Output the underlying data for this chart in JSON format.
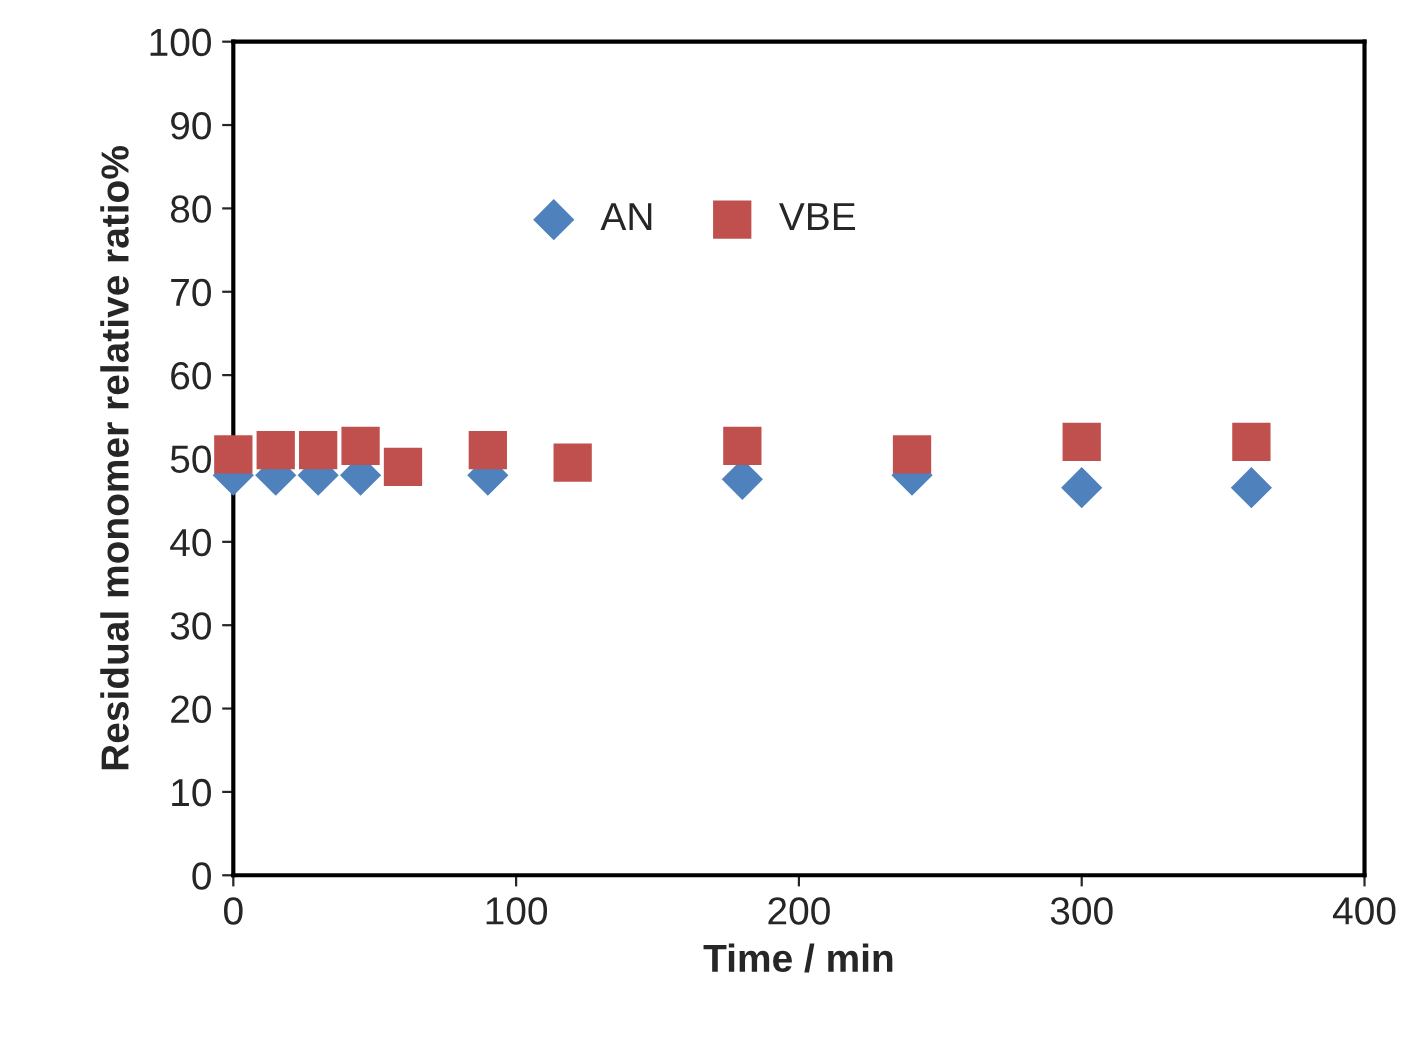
{
  "chart_data": {
    "type": "scatter",
    "xlabel": "Time / min",
    "ylabel": "Residual monomer relative ratio%",
    "x": [
      0,
      15,
      30,
      45,
      60,
      90,
      120,
      180,
      240,
      300,
      360
    ],
    "series": [
      {
        "name": "AN",
        "color": "#4f81bd",
        "marker": "diamond",
        "values": [
          48,
          48,
          48,
          48,
          null,
          48,
          null,
          47.5,
          48,
          46.5,
          46.5
        ]
      },
      {
        "name": "VBE",
        "color": "#c0504d",
        "marker": "square",
        "values": [
          50.5,
          51,
          51,
          51.5,
          49,
          51,
          49.5,
          51.5,
          50.5,
          52,
          52
        ]
      }
    ],
    "xlim": [
      0,
      400
    ],
    "xticks": [
      0,
      100,
      200,
      300,
      400
    ],
    "ylim": [
      0,
      100
    ],
    "yticks": [
      0,
      10,
      20,
      30,
      40,
      50,
      60,
      70,
      80,
      90,
      100
    ],
    "grid": false,
    "legend": "top"
  }
}
